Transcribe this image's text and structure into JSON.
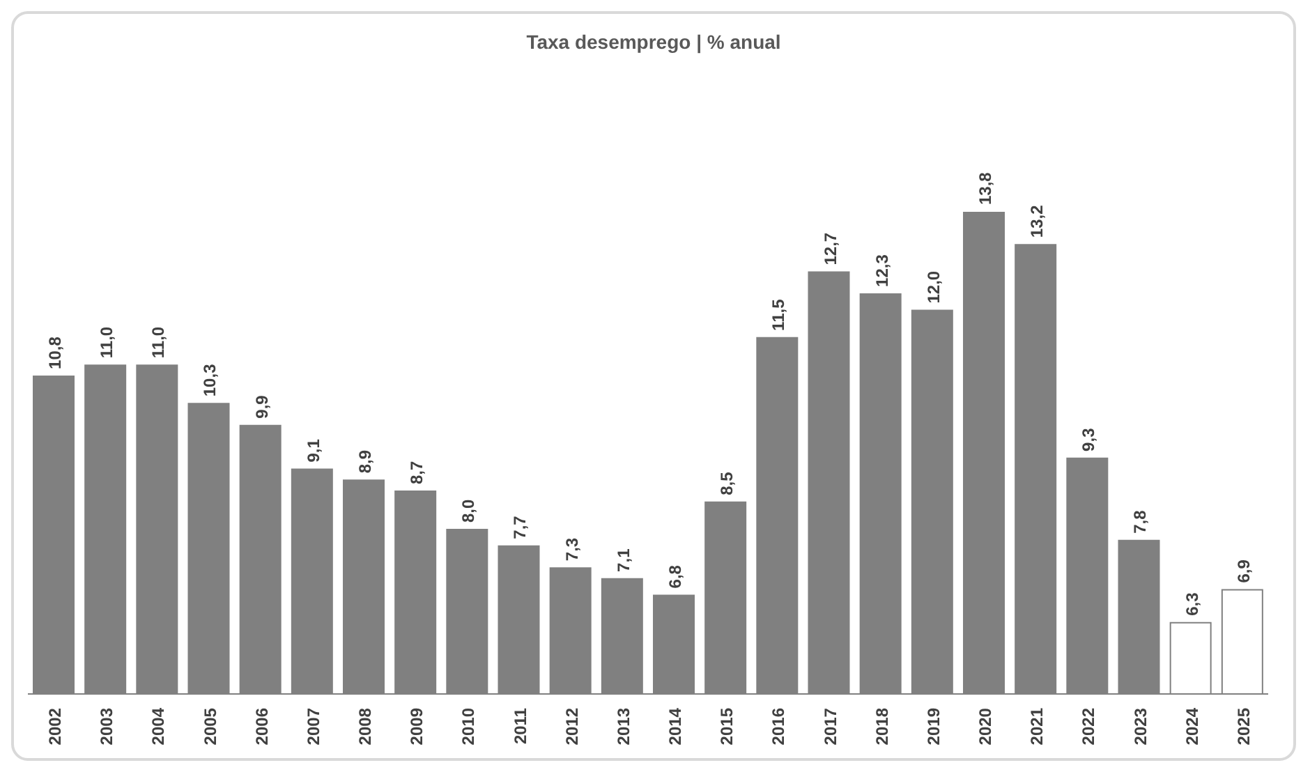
{
  "chart_data": {
    "type": "bar",
    "title": "Taxa desemprego  | % anual",
    "categories": [
      "2002",
      "2003",
      "2004",
      "2005",
      "2006",
      "2007",
      "2008",
      "2009",
      "2010",
      "2011",
      "2012",
      "2013",
      "2014",
      "2015",
      "2016",
      "2017",
      "2018",
      "2019",
      "2020",
      "2021",
      "2022",
      "2023",
      "2024",
      "2025"
    ],
    "values": [
      10.8,
      11.0,
      11.0,
      10.3,
      9.9,
      9.1,
      8.9,
      8.7,
      8.0,
      7.7,
      7.3,
      7.1,
      6.8,
      8.5,
      11.5,
      12.7,
      12.3,
      12.0,
      13.8,
      13.2,
      9.3,
      7.8,
      6.3,
      6.9
    ],
    "value_labels": [
      "10,8",
      "11,0",
      "11,0",
      "10,3",
      "9,9",
      "9,1",
      "8,9",
      "8,7",
      "8,0",
      "7,7",
      "7,3",
      "7,1",
      "6,8",
      "8,5",
      "11,5",
      "12,7",
      "12,3",
      "12,0",
      "13,8",
      "13,2",
      "9,3",
      "7,8",
      "6,3",
      "6,9"
    ],
    "colors": [
      "#808080",
      "#808080",
      "#808080",
      "#808080",
      "#808080",
      "#808080",
      "#808080",
      "#808080",
      "#808080",
      "#808080",
      "#808080",
      "#808080",
      "#808080",
      "#808080",
      "#808080",
      "#808080",
      "#808080",
      "#808080",
      "#808080",
      "#808080",
      "#808080",
      "#808080",
      "#ffffff",
      "#ffffff"
    ],
    "ylim": [
      5,
      13.8
    ],
    "tick_labels": "x"
  }
}
